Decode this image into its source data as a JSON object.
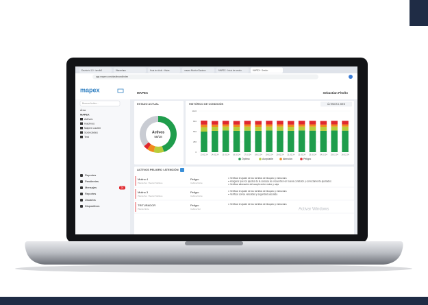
{
  "browser": {
    "tabs": [
      "Escritorio 1.0 - ipmdb0",
      "Mapex/app",
      "Hoja sin título - Hojas",
      "mapex Monitor Equipos",
      "MAPEX - Inicio de sesión",
      "MAPEX - Sesión"
    ],
    "url": "app.mapex.com/dashboard/index"
  },
  "app": {
    "logo": "mapex",
    "breadcrumb": "MAPEX",
    "user": "Sebastian Pitoño",
    "search": "Buscar Activo...",
    "tree": [
      "Área",
      "MAPEX",
      "Activos",
      "Inactivos",
      "Mapex Lauren",
      "Sociedades",
      "Test"
    ],
    "menu": [
      "Reportes",
      "Pendientes",
      "Mensajes",
      "Reportes",
      "Usuarios",
      "Dispositivos"
    ],
    "badge": "24"
  },
  "state_title": "ESTADO ACTUAL",
  "center_label": "Activos",
  "center_value": "58/18",
  "range_button": "ÚLTIMOS 1 MES",
  "alerts": {
    "title": "ACTIVOS PELIGRO / ATENCIÓN",
    "rows": [
      {
        "asset": "Molino 4",
        "location": "Planta Sur / Sector Molinos",
        "status": "Peligro",
        "detail": "Cabina Norte",
        "notes": [
          "Verificar el ajuste de los tornillos de bloqueo y estructura",
          "Asegurar que los ajustes de la carcasa se encuentren en buena condición y correctamente ajustados",
          "Verificar alineación del acople entre motor y caja"
        ]
      },
      {
        "asset": "Molino 3",
        "location": "Planta Sur / Sector Molinos",
        "status": "Peligro",
        "detail": "Cabina Norte",
        "notes": [
          "Verificar el ajuste de los tornillos de bloqueo y estructura",
          "Verificar correa velocidad y seguridad asociada"
        ]
      },
      {
        "asset": "TRITURADOR",
        "location": "Planta Norte",
        "status": "Peligro",
        "detail": "Cabina Sur",
        "notes": [
          "Verificar el ajuste de los tornillos de bloqueo y estructura"
        ]
      }
    ]
  },
  "watermark": "Activar Windows",
  "chart_data": [
    {
      "type": "pie",
      "donut": true,
      "values": [
        45,
        9,
        6,
        4,
        36
      ],
      "colors": [
        "#1f9d4c",
        "#b9cc3a",
        "#f08a1c",
        "#e0282e",
        "#c9ccd3"
      ]
    },
    {
      "type": "bar",
      "stacked": true,
      "title": "HISTÓRICO DE CONDICIÓN",
      "categories": [
        "13.02.24",
        "14.02.24",
        "15.02.24",
        "16.02.24",
        "17.02.24",
        "18.02.24",
        "19.02.24",
        "20.02.24",
        "21.02.24",
        "22.02.24",
        "23.02.24",
        "24.02.24",
        "25.02.24",
        "26.02.24"
      ],
      "series": [
        {
          "name": "Óptimo",
          "color": "#1f9d4c",
          "values": [
            560,
            580,
            590,
            580,
            585,
            580,
            590,
            585,
            580,
            590,
            585,
            580,
            590,
            585
          ]
        },
        {
          "name": "Aceptable",
          "color": "#b9cc3a",
          "values": [
            120,
            110,
            105,
            110,
            110,
            110,
            105,
            110,
            110,
            105,
            110,
            110,
            105,
            110
          ]
        },
        {
          "name": "Atención",
          "color": "#f08a1c",
          "values": [
            70,
            60,
            60,
            60,
            60,
            60,
            60,
            60,
            60,
            60,
            60,
            60,
            60,
            60
          ]
        },
        {
          "name": "Peligro",
          "color": "#e0282e",
          "values": [
            110,
            100,
            100,
            100,
            100,
            100,
            100,
            100,
            100,
            100,
            100,
            100,
            100,
            100
          ]
        }
      ],
      "ylim": [
        0,
        1120
      ],
      "yticks": [
        0,
        280,
        560,
        840,
        1120
      ],
      "grid": true
    }
  ]
}
